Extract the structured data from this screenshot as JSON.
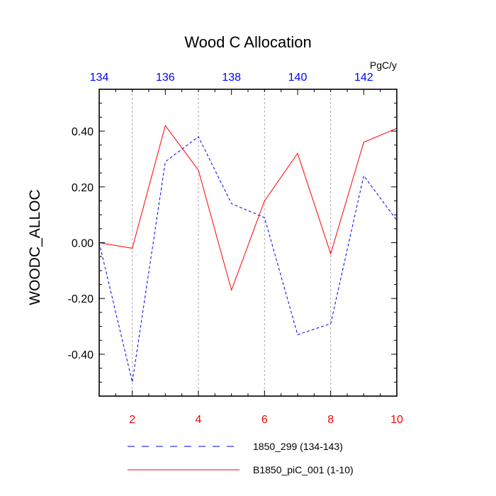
{
  "chart_data": {
    "type": "line",
    "title": "Wood C Allocation",
    "units": "PgC/y",
    "ylabel": "WOODC_ALLOC",
    "ylim": [
      -0.55,
      0.55
    ],
    "y_ticks": [
      -0.4,
      -0.2,
      0.0,
      0.2,
      0.4
    ],
    "y_tick_labels": [
      "-0.40",
      "-0.20",
      "0.00",
      "0.20",
      "0.40"
    ],
    "x_bottom": {
      "range": [
        1,
        10
      ],
      "ticks": [
        2,
        4,
        6,
        8,
        10
      ],
      "tick_labels": [
        "2",
        "4",
        "6",
        "8",
        "10"
      ],
      "color": "#ff0000"
    },
    "x_top": {
      "range": [
        134,
        143
      ],
      "ticks": [
        134,
        136,
        138,
        140,
        142
      ],
      "tick_labels": [
        "134",
        "136",
        "138",
        "140",
        "142"
      ],
      "color": "#0000ff"
    },
    "grid": "vertical dashed at bottom major ticks",
    "series": [
      {
        "name": "1850_299 (134-143)",
        "axis": "top",
        "color": "#0000ff",
        "style": "dashed",
        "x": [
          134,
          135,
          136,
          137,
          138,
          139,
          140,
          141,
          142,
          143
        ],
        "values": [
          0.0,
          -0.5,
          0.29,
          0.38,
          0.14,
          0.09,
          -0.33,
          -0.29,
          0.24,
          0.08
        ]
      },
      {
        "name": "B1850_piC_001 (1-10)",
        "axis": "bottom",
        "color": "#ff0000",
        "style": "solid",
        "x": [
          1,
          2,
          3,
          4,
          5,
          6,
          7,
          8,
          9,
          10
        ],
        "values": [
          0.0,
          -0.02,
          0.42,
          0.26,
          -0.17,
          0.15,
          0.32,
          -0.04,
          0.36,
          0.41
        ]
      }
    ],
    "legend_position": "bottom"
  }
}
